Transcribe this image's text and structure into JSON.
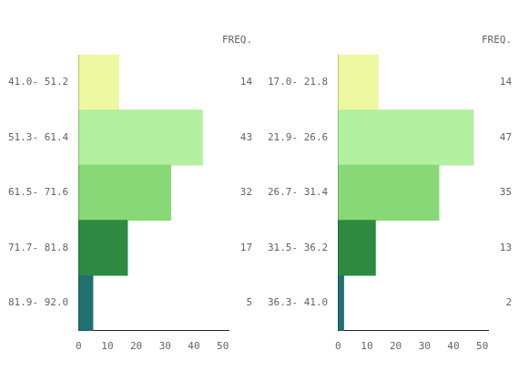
{
  "chart_data": [
    {
      "type": "bar",
      "orientation": "horizontal",
      "annotation": "FREQ.",
      "categories": [
        "41.0- 51.2",
        "51.3- 61.4",
        "61.5- 71.6",
        "71.7- 81.8",
        "81.9- 92.0"
      ],
      "values": [
        14,
        43,
        32,
        17,
        5
      ],
      "colors": [
        "#eef8a0",
        "#b3f0a0",
        "#88d878",
        "#2d8a40",
        "#217070"
      ],
      "xlim": [
        0,
        52
      ],
      "xticks": [
        0,
        10,
        20,
        30,
        40,
        50
      ],
      "grid": false,
      "data_labels": true
    },
    {
      "type": "bar",
      "orientation": "horizontal",
      "annotation": "FREQ.",
      "categories": [
        "17.0- 21.8",
        "21.9- 26.6",
        "26.7- 31.4",
        "31.5- 36.2",
        "36.3- 41.0"
      ],
      "values": [
        14,
        47,
        35,
        13,
        2
      ],
      "colors": [
        "#eef8a0",
        "#b3f0a0",
        "#88d878",
        "#2d8a40",
        "#217070"
      ],
      "xlim": [
        0,
        52
      ],
      "xticks": [
        0,
        10,
        20,
        30,
        40,
        50
      ],
      "grid": false,
      "data_labels": true
    }
  ]
}
